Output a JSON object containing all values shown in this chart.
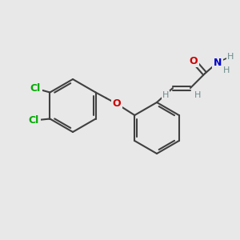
{
  "bg_color": "#e8e8e8",
  "bond_color": "#404040",
  "bond_width": 1.5,
  "font_size": 9,
  "colors": {
    "C": "#404040",
    "H": "#6e8b8b",
    "O": "#cc0000",
    "N": "#0000cc",
    "Cl": "#00aa00"
  }
}
